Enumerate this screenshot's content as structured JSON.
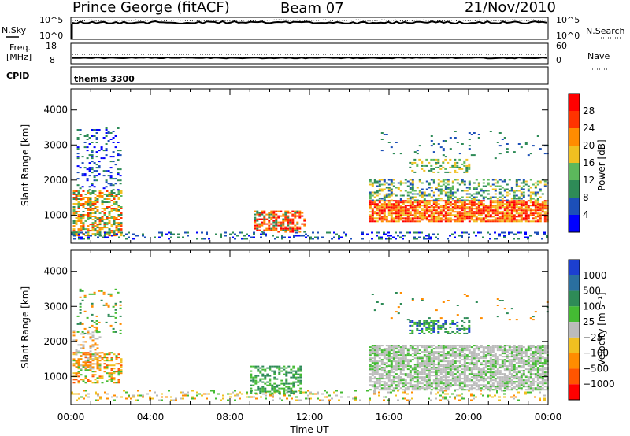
{
  "header": {
    "station": "Prince George (fitACF)",
    "beam": "Beam 07",
    "date": "21/Nov/2010"
  },
  "strip_labels": {
    "nsky": "N.Sky",
    "nsky_ticks": [
      "10^5",
      "10^0"
    ],
    "nsearch": "N.Search",
    "nsearch_ticks": [
      "10^5",
      "10^0"
    ],
    "freq_l1": "Freq.",
    "freq_l2": "[MHz]",
    "freq_ticks": [
      "18",
      "8"
    ],
    "nave": "Nave",
    "nave_ticks": [
      "60",
      "0"
    ],
    "cpid": "CPID",
    "cpid_value": "themis 3300"
  },
  "chart_data": [
    {
      "type": "heatmap",
      "name": "power",
      "ylabel": "Slant Range [km]",
      "xlabel": "",
      "x_ticks": [
        "00:00",
        "04:00",
        "08:00",
        "12:00",
        "16:00",
        "20:00",
        "00:00"
      ],
      "y_ticks": [
        "1000",
        "2000",
        "3000",
        "4000"
      ],
      "ylim": [
        200,
        4600
      ],
      "xlim_hours": [
        0,
        24
      ],
      "colorbar": {
        "label": "Power [dB]",
        "ticks": [
          "4",
          "8",
          "12",
          "16",
          "20",
          "24",
          "28"
        ],
        "colors": [
          "#0000ff",
          "#1c4fb8",
          "#2e8b57",
          "#5cb85c",
          "#f0c020",
          "#ff8c00",
          "#ff3300",
          "#ff0000"
        ]
      }
    },
    {
      "type": "heatmap",
      "name": "velocity",
      "ylabel": "Slant Range [km]",
      "xlabel": "Time UT",
      "x_ticks": [
        "00:00",
        "04:00",
        "08:00",
        "12:00",
        "16:00",
        "20:00",
        "00:00"
      ],
      "y_ticks": [
        "1000",
        "2000",
        "3000",
        "4000"
      ],
      "ylim": [
        200,
        4600
      ],
      "xlim_hours": [
        0,
        24
      ],
      "colorbar": {
        "label": "Velocity [m s⁻¹]",
        "ticks": [
          "1000",
          "500",
          "100",
          "25",
          "−25",
          "−100",
          "−500",
          "−1000"
        ],
        "colors": [
          "#1c3fd0",
          "#2a6f9f",
          "#2e8b57",
          "#44bb33",
          "#bbbbbb",
          "#f0c020",
          "#ff8c00",
          "#ff5500",
          "#ff0000"
        ]
      }
    }
  ]
}
